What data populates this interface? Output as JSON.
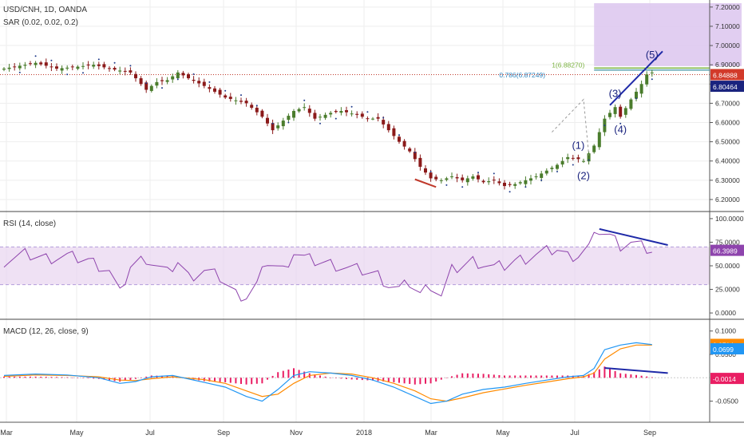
{
  "colors": {
    "price_line": "#c0392b",
    "up": "#4a7c2c",
    "down": "#8b1a1a",
    "sar": "#1f3a8a",
    "rsi": "#8e44ad",
    "rsi_band": "#e8d4f0",
    "macd": "#2196f3",
    "signal": "#ff8a00",
    "hist": "#e91e63",
    "wave": "#1f2aa8",
    "fib_box": "#dcc6ee",
    "current_label": "#d23a2a",
    "sar_label": "#1a237e",
    "rsi_label": "#8e44ad",
    "macd_label": "#ff8a00",
    "signal_label": "#2196f3",
    "hist_label": "#e91e63",
    "grid": "#eeeeee",
    "divider": "#444444"
  },
  "chart_data": [
    {
      "type": "candlestick",
      "title": "USD/CNH, 1D, OANDA",
      "indicator": "SAR (0.02, 0.02, 0.2)",
      "x_ticks": [
        "Mar",
        "May",
        "Jul",
        "Sep",
        "Nov",
        "2018",
        "Mar",
        "May",
        "Jul",
        "Sep"
      ],
      "y_ticks": [
        "7.20000",
        "7.10000",
        "7.00000",
        "6.90000",
        "6.80000",
        "6.70000",
        "6.60000",
        "6.50000",
        "6.40000",
        "6.30000",
        "6.20000"
      ],
      "ylim": [
        6.15,
        7.22
      ],
      "price_path": [
        [
          0,
          6.88
        ],
        [
          4,
          6.9
        ],
        [
          6,
          6.91
        ],
        [
          10,
          6.88
        ],
        [
          14,
          6.89
        ],
        [
          17,
          6.9
        ],
        [
          20,
          6.88
        ],
        [
          24,
          6.86
        ],
        [
          27,
          6.77
        ],
        [
          29,
          6.81
        ],
        [
          31,
          6.82
        ],
        [
          33,
          6.86
        ],
        [
          35,
          6.83
        ],
        [
          38,
          6.79
        ],
        [
          42,
          6.73
        ],
        [
          46,
          6.7
        ],
        [
          49,
          6.63
        ],
        [
          51,
          6.56
        ],
        [
          53,
          6.61
        ],
        [
          55,
          6.66
        ],
        [
          57,
          6.68
        ],
        [
          59,
          6.62
        ],
        [
          62,
          6.65
        ],
        [
          64,
          6.66
        ],
        [
          67,
          6.64
        ],
        [
          69,
          6.62
        ],
        [
          71,
          6.62
        ],
        [
          73,
          6.56
        ],
        [
          75,
          6.5
        ],
        [
          77,
          6.45
        ],
        [
          79,
          6.37
        ],
        [
          81,
          6.31
        ],
        [
          83,
          6.3
        ],
        [
          85,
          6.32
        ],
        [
          87,
          6.3
        ],
        [
          89,
          6.32
        ],
        [
          91,
          6.29
        ],
        [
          93,
          6.3
        ],
        [
          95,
          6.27
        ],
        [
          97,
          6.28
        ],
        [
          99,
          6.3
        ],
        [
          101,
          6.32
        ],
        [
          103,
          6.35
        ],
        [
          105,
          6.38
        ],
        [
          107,
          6.42
        ],
        [
          109,
          6.41
        ],
        [
          110,
          6.4
        ],
        [
          112,
          6.48
        ],
        [
          114,
          6.62
        ],
        [
          116,
          6.68
        ],
        [
          117,
          6.63
        ],
        [
          119,
          6.72
        ],
        [
          121,
          6.8
        ],
        [
          122,
          6.85
        ],
        [
          123,
          6.86
        ]
      ],
      "candle_count": 124,
      "sar_period": 3,
      "fib": {
        "label": "0.786(6.87249)",
        "green_label": "1(6.88270)",
        "level": 6.8725,
        "green_level": 6.883
      },
      "fib_box": {
        "x_from": 112,
        "x_to": 140,
        "y_from": 6.893,
        "y_to": 7.22
      },
      "current_price": {
        "value": "6.84888",
        "level": 6.849
      },
      "sar_value": {
        "value": "6.80464",
        "level": 6.805
      },
      "waves": [
        {
          "label": "(1)",
          "x": 109,
          "y": 6.43,
          "pos": "above"
        },
        {
          "label": "(2)",
          "x": 110,
          "y": 6.38,
          "pos": "below"
        },
        {
          "label": "(3)",
          "x": 116,
          "y": 6.7,
          "pos": "above"
        },
        {
          "label": "(4)",
          "x": 117,
          "y": 6.62,
          "pos": "below"
        },
        {
          "label": "(5)",
          "x": 123,
          "y": 6.9,
          "pos": "above"
        }
      ],
      "trendlines": [
        {
          "color_key": "wave",
          "points": [
            [
              115,
              6.69
            ],
            [
              125,
              6.97
            ]
          ]
        },
        {
          "color_key": "price_line",
          "points": [
            [
              78,
              6.305
            ],
            [
              82,
              6.265
            ]
          ]
        }
      ]
    },
    {
      "type": "line",
      "title": "RSI (14, close)",
      "y_ticks": [
        "100.0000",
        "75.0000",
        "50.0000",
        "25.0000",
        "0.0000"
      ],
      "ylim": [
        -5,
        105
      ],
      "band": [
        30,
        70
      ],
      "current": "66.3989",
      "current_level": 66.4,
      "path": [
        [
          0,
          55
        ],
        [
          4,
          62
        ],
        [
          8,
          58
        ],
        [
          12,
          60
        ],
        [
          16,
          56
        ],
        [
          20,
          45
        ],
        [
          22,
          20
        ],
        [
          24,
          50
        ],
        [
          27,
          58
        ],
        [
          29,
          50
        ],
        [
          31,
          42
        ],
        [
          33,
          55
        ],
        [
          35,
          38
        ],
        [
          38,
          45
        ],
        [
          41,
          38
        ],
        [
          44,
          20
        ],
        [
          46,
          18
        ],
        [
          48,
          30
        ],
        [
          50,
          55
        ],
        [
          53,
          45
        ],
        [
          55,
          65
        ],
        [
          57,
          58
        ],
        [
          59,
          55
        ],
        [
          62,
          52
        ],
        [
          65,
          48
        ],
        [
          68,
          45
        ],
        [
          71,
          40
        ],
        [
          73,
          30
        ],
        [
          75,
          25
        ],
        [
          77,
          32
        ],
        [
          79,
          20
        ],
        [
          81,
          30
        ],
        [
          83,
          18
        ],
        [
          85,
          45
        ],
        [
          87,
          50
        ],
        [
          89,
          55
        ],
        [
          91,
          52
        ],
        [
          93,
          48
        ],
        [
          95,
          50
        ],
        [
          97,
          55
        ],
        [
          99,
          58
        ],
        [
          101,
          62
        ],
        [
          103,
          65
        ],
        [
          105,
          68
        ],
        [
          107,
          60
        ],
        [
          109,
          62
        ],
        [
          111,
          70
        ],
        [
          113,
          88
        ],
        [
          115,
          82
        ],
        [
          117,
          72
        ],
        [
          119,
          75
        ],
        [
          121,
          70
        ],
        [
          123,
          66
        ]
      ],
      "divergence": [
        [
          113,
          89
        ],
        [
          126,
          72
        ]
      ]
    },
    {
      "type": "line",
      "title": "MACD (12, 26, close, 9)",
      "y_ticks": [
        "0.1000",
        "0.0500",
        "-0.0500"
      ],
      "ylim": [
        -0.09,
        0.12
      ],
      "labels": [
        {
          "value": "0.0714",
          "level": 0.0714,
          "color_key": "macd_label"
        },
        {
          "value": "0.0699",
          "level": 0.062,
          "color_key": "signal_label"
        },
        {
          "value": "-0.0014",
          "level": -0.0014,
          "color_key": "hist_label"
        }
      ],
      "macd": [
        [
          0,
          0.005
        ],
        [
          6,
          0.008
        ],
        [
          12,
          0.006
        ],
        [
          18,
          0.0
        ],
        [
          22,
          -0.012
        ],
        [
          25,
          -0.008
        ],
        [
          28,
          0.002
        ],
        [
          32,
          0.005
        ],
        [
          38,
          -0.01
        ],
        [
          42,
          -0.02
        ],
        [
          46,
          -0.04
        ],
        [
          49,
          -0.05
        ],
        [
          52,
          -0.025
        ],
        [
          55,
          0.005
        ],
        [
          58,
          0.013
        ],
        [
          62,
          0.01
        ],
        [
          66,
          0.005
        ],
        [
          70,
          -0.005
        ],
        [
          74,
          -0.02
        ],
        [
          78,
          -0.04
        ],
        [
          81,
          -0.055
        ],
        [
          84,
          -0.05
        ],
        [
          87,
          -0.035
        ],
        [
          91,
          -0.025
        ],
        [
          95,
          -0.02
        ],
        [
          99,
          -0.012
        ],
        [
          103,
          -0.005
        ],
        [
          107,
          0.002
        ],
        [
          110,
          0.005
        ],
        [
          112,
          0.02
        ],
        [
          114,
          0.06
        ],
        [
          117,
          0.07
        ],
        [
          120,
          0.075
        ],
        [
          123,
          0.071
        ]
      ],
      "signal": [
        [
          0,
          0.003
        ],
        [
          6,
          0.006
        ],
        [
          12,
          0.005
        ],
        [
          18,
          0.002
        ],
        [
          22,
          -0.005
        ],
        [
          25,
          -0.006
        ],
        [
          28,
          -0.002
        ],
        [
          32,
          0.002
        ],
        [
          38,
          -0.004
        ],
        [
          42,
          -0.012
        ],
        [
          46,
          -0.028
        ],
        [
          49,
          -0.04
        ],
        [
          52,
          -0.035
        ],
        [
          55,
          -0.012
        ],
        [
          58,
          0.005
        ],
        [
          62,
          0.01
        ],
        [
          66,
          0.008
        ],
        [
          70,
          0.0
        ],
        [
          74,
          -0.012
        ],
        [
          78,
          -0.028
        ],
        [
          81,
          -0.045
        ],
        [
          84,
          -0.05
        ],
        [
          87,
          -0.043
        ],
        [
          91,
          -0.032
        ],
        [
          95,
          -0.024
        ],
        [
          99,
          -0.016
        ],
        [
          103,
          -0.009
        ],
        [
          107,
          -0.002
        ],
        [
          110,
          0.002
        ],
        [
          112,
          0.01
        ],
        [
          114,
          0.04
        ],
        [
          117,
          0.062
        ],
        [
          120,
          0.07
        ],
        [
          123,
          0.07
        ]
      ],
      "hist_scale": 0.4,
      "divergence": [
        [
          114,
          0.021
        ],
        [
          126,
          0.01
        ]
      ]
    }
  ]
}
